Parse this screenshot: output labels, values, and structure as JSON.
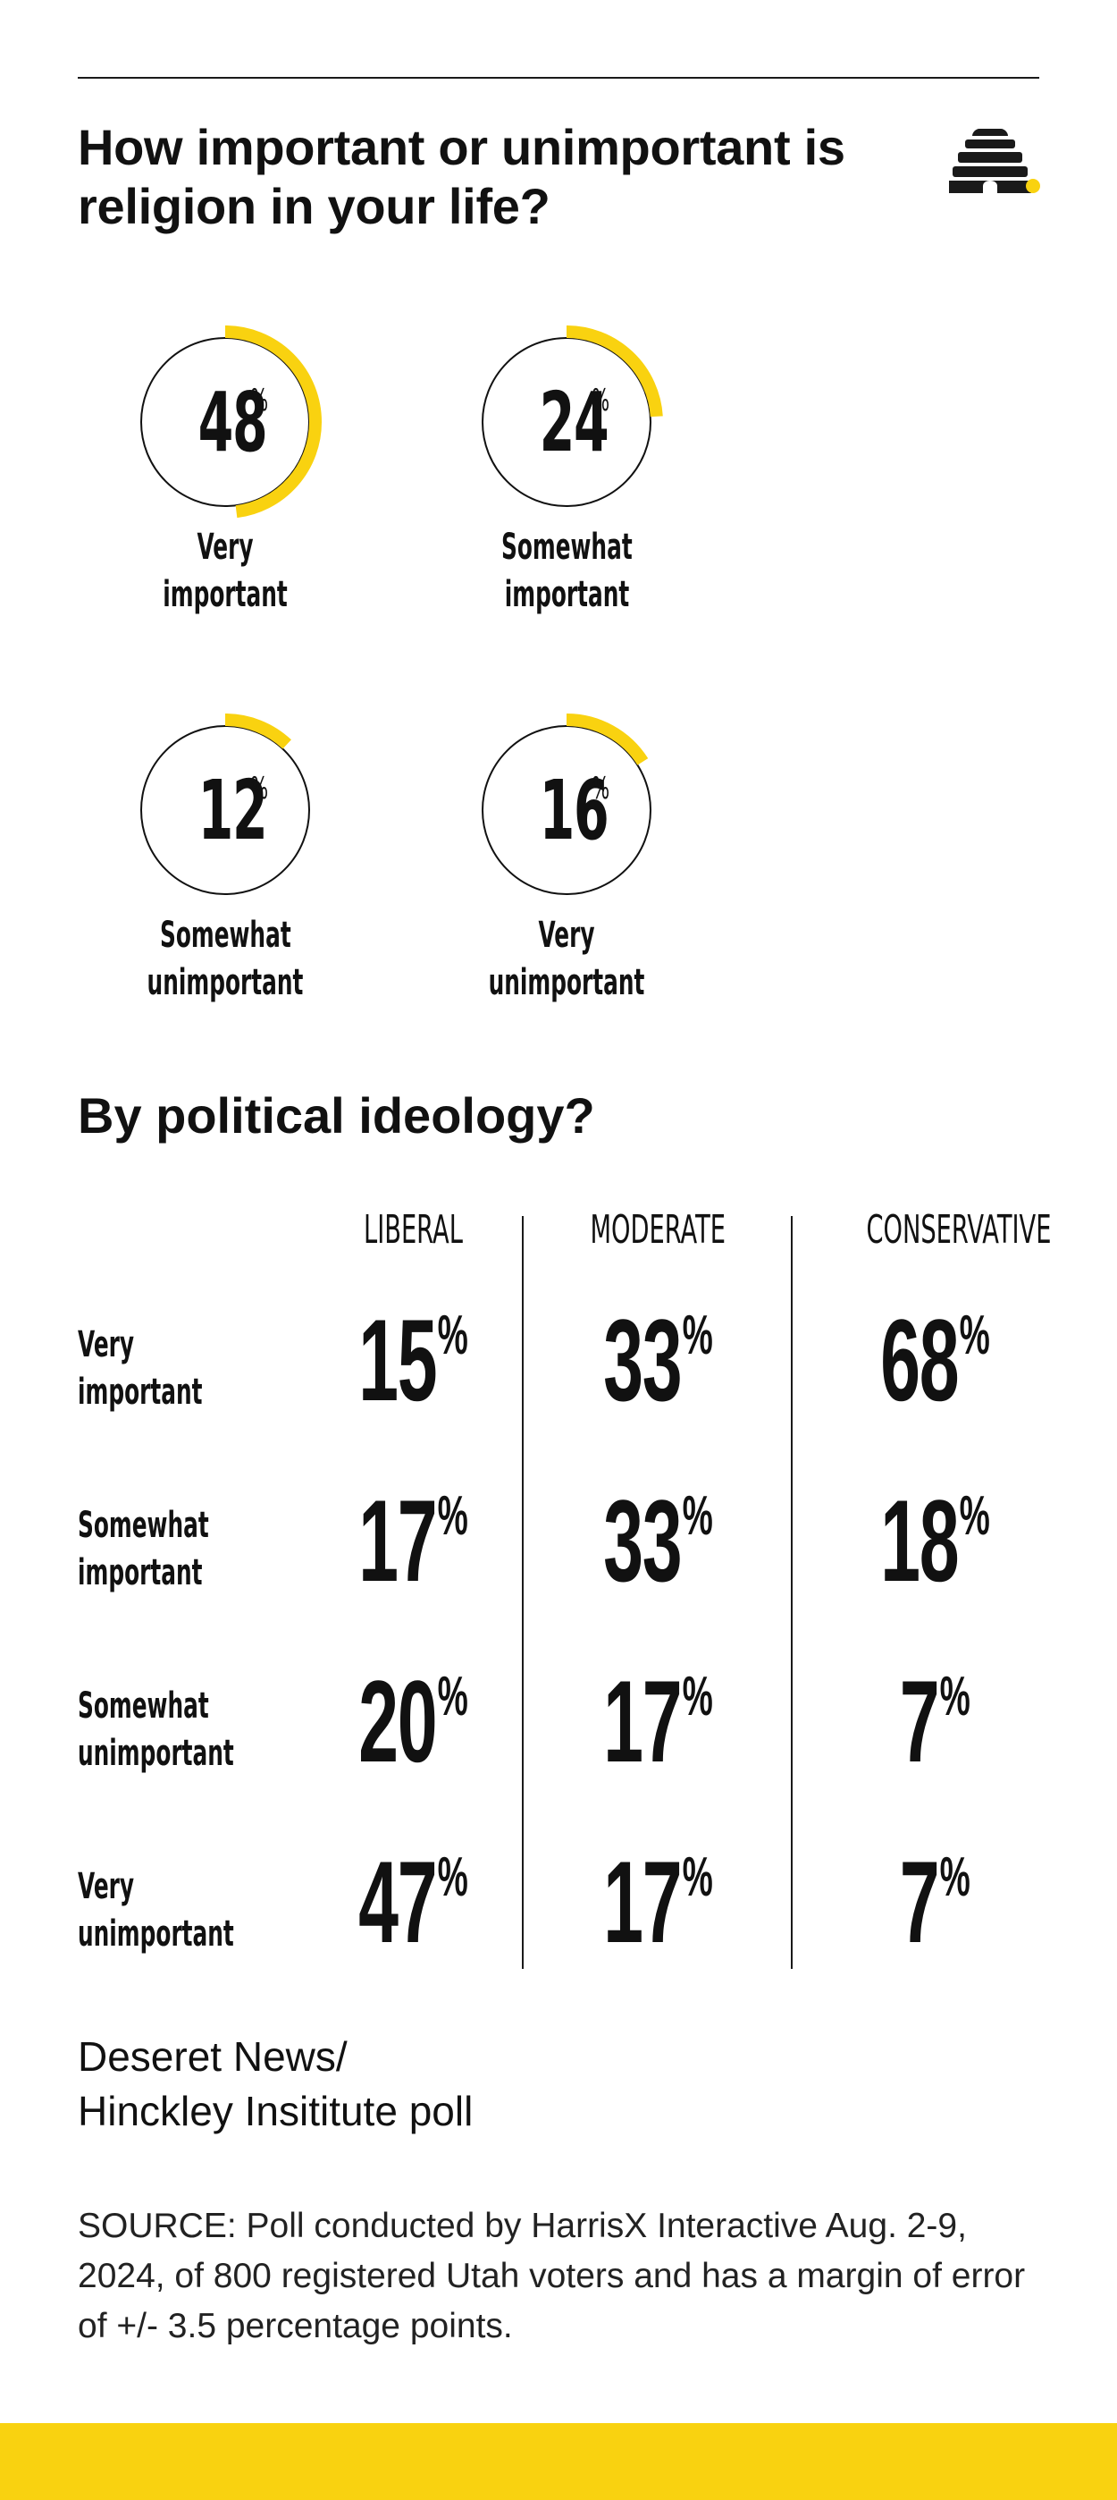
{
  "title": "How important or unimportant is religion in your life?",
  "colors": {
    "accent": "#f9d210",
    "ink": "#111111",
    "ring_stroke": "#111111"
  },
  "chart_data": [
    {
      "type": "pie",
      "title": "How important or unimportant is religion in your life?",
      "unit": "%",
      "categories": [
        "Very important",
        "Somewhat important",
        "Somewhat unimportant",
        "Very unimportant"
      ],
      "values": [
        48,
        24,
        12,
        16
      ],
      "category_labels": [
        [
          "Very important"
        ],
        [
          "Somewhat",
          "important"
        ],
        [
          "Somewhat",
          "unimportant"
        ],
        [
          "Very unimportant"
        ]
      ]
    },
    {
      "type": "table",
      "title": "By political ideology?",
      "unit": "%",
      "columns": [
        "LIBERAL",
        "MODERATE",
        "CONSERVATIVE"
      ],
      "rows": [
        {
          "label": [
            "Very",
            "important"
          ],
          "values": [
            15,
            33,
            68
          ]
        },
        {
          "label": [
            "Somewhat",
            "important"
          ],
          "values": [
            17,
            33,
            18
          ]
        },
        {
          "label": [
            "Somewhat",
            "unimportant"
          ],
          "values": [
            20,
            17,
            7
          ]
        },
        {
          "label": [
            "Very",
            "unimportant"
          ],
          "values": [
            47,
            17,
            7
          ]
        }
      ]
    }
  ],
  "credit_lines": [
    "Deseret News/",
    "Hinckley Insititute poll"
  ],
  "source": "SOURCE: Poll conducted by HarrisX Interactive Aug. 2-9, 2024, of 800 registered Utah voters and has a margin of error of +/- 3.5 percentage points."
}
